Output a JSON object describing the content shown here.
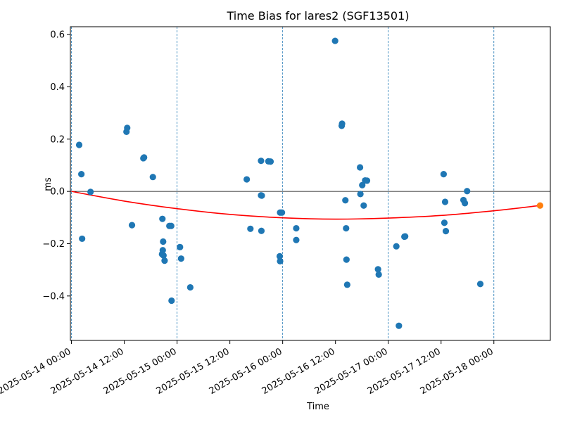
{
  "chart_data": {
    "type": "scatter",
    "title": "Time Bias for lares2 (SGF13501)",
    "xlabel": "Time",
    "ylabel": "ms",
    "x_unit": "datetime",
    "xlim": [
      "2025-05-13T23:45",
      "2025-05-18T12:50"
    ],
    "ylim": [
      -0.57,
      0.63
    ],
    "x_ticks": [
      {
        "value": "2025-05-14T00:00",
        "label": "2025-05-14 00:00"
      },
      {
        "value": "2025-05-14T12:00",
        "label": "2025-05-14 12:00"
      },
      {
        "value": "2025-05-15T00:00",
        "label": "2025-05-15 00:00"
      },
      {
        "value": "2025-05-15T12:00",
        "label": "2025-05-15 12:00"
      },
      {
        "value": "2025-05-16T00:00",
        "label": "2025-05-16 00:00"
      },
      {
        "value": "2025-05-16T12:00",
        "label": "2025-05-16 12:00"
      },
      {
        "value": "2025-05-17T00:00",
        "label": "2025-05-17 00:00"
      },
      {
        "value": "2025-05-17T12:00",
        "label": "2025-05-17 12:00"
      },
      {
        "value": "2025-05-18T00:00",
        "label": "2025-05-18 00:00"
      }
    ],
    "y_ticks": [
      {
        "value": 0.6,
        "label": "0.6"
      },
      {
        "value": 0.4,
        "label": "0.4"
      },
      {
        "value": 0.2,
        "label": "0.2"
      },
      {
        "value": 0.0,
        "label": "0.0"
      },
      {
        "value": -0.2,
        "label": "−0.2"
      },
      {
        "value": -0.4,
        "label": "−0.4"
      }
    ],
    "day_boundaries": [
      "2025-05-14T00:00",
      "2025-05-15T00:00",
      "2025-05-16T00:00",
      "2025-05-17T00:00",
      "2025-05-18T00:00"
    ],
    "zero_line": 0,
    "colors": {
      "points": "#1f77b4",
      "fit": "#ff0000",
      "last_point": "#ff7f0e",
      "zero_line": "#000000",
      "day_lines": "#1f77b4"
    },
    "series": [
      {
        "kind": "scatter",
        "points": [
          {
            "x": "2025-05-14T01:45",
            "y": 0.178
          },
          {
            "x": "2025-05-14T02:15",
            "y": 0.066
          },
          {
            "x": "2025-05-14T02:25",
            "y": -0.181
          },
          {
            "x": "2025-05-14T04:20",
            "y": -0.002
          },
          {
            "x": "2025-05-14T12:30",
            "y": 0.228
          },
          {
            "x": "2025-05-14T12:40",
            "y": 0.243
          },
          {
            "x": "2025-05-14T13:45",
            "y": -0.129
          },
          {
            "x": "2025-05-14T16:20",
            "y": 0.127
          },
          {
            "x": "2025-05-14T16:30",
            "y": 0.13
          },
          {
            "x": "2025-05-14T18:30",
            "y": 0.055
          },
          {
            "x": "2025-05-14T20:40",
            "y": -0.105
          },
          {
            "x": "2025-05-14T20:50",
            "y": -0.192
          },
          {
            "x": "2025-05-14T20:45",
            "y": -0.225
          },
          {
            "x": "2025-05-14T20:35",
            "y": -0.24
          },
          {
            "x": "2025-05-14T20:55",
            "y": -0.245
          },
          {
            "x": "2025-05-14T21:10",
            "y": -0.265
          },
          {
            "x": "2025-05-14T22:15",
            "y": -0.132
          },
          {
            "x": "2025-05-14T22:40",
            "y": -0.132
          },
          {
            "x": "2025-05-14T22:45",
            "y": -0.418
          },
          {
            "x": "2025-05-15T00:40",
            "y": -0.213
          },
          {
            "x": "2025-05-15T00:55",
            "y": -0.257
          },
          {
            "x": "2025-05-15T03:00",
            "y": -0.367
          },
          {
            "x": "2025-05-15T15:50",
            "y": 0.046
          },
          {
            "x": "2025-05-15T16:40",
            "y": -0.143
          },
          {
            "x": "2025-05-15T19:05",
            "y": 0.117
          },
          {
            "x": "2025-05-15T19:05",
            "y": -0.015
          },
          {
            "x": "2025-05-15T19:15",
            "y": -0.016
          },
          {
            "x": "2025-05-15T19:10",
            "y": -0.151
          },
          {
            "x": "2025-05-15T20:45",
            "y": 0.115
          },
          {
            "x": "2025-05-15T21:15",
            "y": 0.114
          },
          {
            "x": "2025-05-15T23:25",
            "y": -0.081
          },
          {
            "x": "2025-05-15T23:50",
            "y": -0.081
          },
          {
            "x": "2025-05-15T23:20",
            "y": -0.248
          },
          {
            "x": "2025-05-15T23:25",
            "y": -0.267
          },
          {
            "x": "2025-05-16T03:05",
            "y": -0.141
          },
          {
            "x": "2025-05-16T03:05",
            "y": -0.186
          },
          {
            "x": "2025-05-16T11:55",
            "y": 0.576
          },
          {
            "x": "2025-05-16T13:25",
            "y": 0.251
          },
          {
            "x": "2025-05-16T13:30",
            "y": 0.259
          },
          {
            "x": "2025-05-16T14:15",
            "y": -0.034
          },
          {
            "x": "2025-05-16T14:25",
            "y": -0.141
          },
          {
            "x": "2025-05-16T14:30",
            "y": -0.261
          },
          {
            "x": "2025-05-16T14:40",
            "y": -0.357
          },
          {
            "x": "2025-05-16T17:35",
            "y": 0.092
          },
          {
            "x": "2025-05-16T17:40",
            "y": -0.01
          },
          {
            "x": "2025-05-16T18:05",
            "y": 0.024
          },
          {
            "x": "2025-05-16T18:25",
            "y": -0.054
          },
          {
            "x": "2025-05-16T18:45",
            "y": 0.042
          },
          {
            "x": "2025-05-16T19:10",
            "y": 0.041
          },
          {
            "x": "2025-05-16T21:40",
            "y": -0.298
          },
          {
            "x": "2025-05-16T21:50",
            "y": -0.318
          },
          {
            "x": "2025-05-17T01:50",
            "y": -0.21
          },
          {
            "x": "2025-05-17T02:25",
            "y": -0.514
          },
          {
            "x": "2025-05-17T03:40",
            "y": -0.173
          },
          {
            "x": "2025-05-17T03:50",
            "y": -0.172
          },
          {
            "x": "2025-05-17T12:35",
            "y": 0.066
          },
          {
            "x": "2025-05-17T12:45",
            "y": -0.12
          },
          {
            "x": "2025-05-17T12:55",
            "y": -0.04
          },
          {
            "x": "2025-05-17T13:05",
            "y": -0.152
          },
          {
            "x": "2025-05-17T17:05",
            "y": -0.033
          },
          {
            "x": "2025-05-17T17:25",
            "y": -0.045
          },
          {
            "x": "2025-05-17T17:55",
            "y": 0.001
          },
          {
            "x": "2025-05-17T20:55",
            "y": -0.354
          }
        ]
      },
      {
        "kind": "fit",
        "points": [
          {
            "x": "2025-05-14T00:00",
            "y": 0.0
          },
          {
            "x": "2025-05-14T12:00",
            "y": -0.037
          },
          {
            "x": "2025-05-15T00:00",
            "y": -0.066
          },
          {
            "x": "2025-05-15T12:00",
            "y": -0.088
          },
          {
            "x": "2025-05-16T00:00",
            "y": -0.101
          },
          {
            "x": "2025-05-16T12:00",
            "y": -0.106
          },
          {
            "x": "2025-05-17T00:00",
            "y": -0.102
          },
          {
            "x": "2025-05-17T12:00",
            "y": -0.092
          },
          {
            "x": "2025-05-18T00:00",
            "y": -0.074
          },
          {
            "x": "2025-05-18T10:30",
            "y": -0.054
          }
        ]
      },
      {
        "kind": "highlight",
        "points": [
          {
            "x": "2025-05-18T10:30",
            "y": -0.054
          }
        ]
      }
    ]
  }
}
